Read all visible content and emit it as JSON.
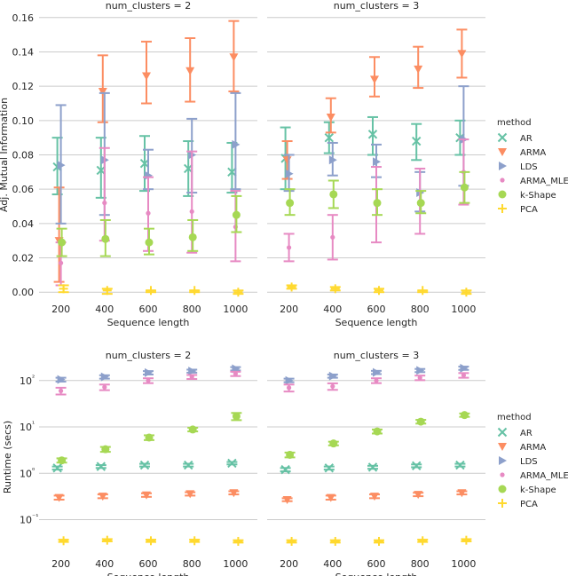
{
  "colors": {
    "AR": "#66c2a5",
    "ARMA": "#fc8d62",
    "LDS": "#8da0cb",
    "ARMA_MLE": "#e78ac3",
    "k-Shape": "#a6d854",
    "PCA": "#ffd92f",
    "grid": "#cccccc"
  },
  "legend": {
    "title": "method",
    "items": [
      {
        "name": "AR",
        "marker": "x"
      },
      {
        "name": "ARMA",
        "marker": "tri_down"
      },
      {
        "name": "LDS",
        "marker": "tri_right"
      },
      {
        "name": "ARMA_MLE",
        "marker": "dot"
      },
      {
        "name": "k-Shape",
        "marker": "circle"
      },
      {
        "name": "PCA",
        "marker": "plus"
      }
    ]
  },
  "chart_data": [
    {
      "type": "scatter",
      "title": "num_clusters = 2",
      "xlabel": "Sequence length",
      "ylabel": "Adj. Mutual Information",
      "categories": [
        "200",
        "400",
        "600",
        "800",
        "1000"
      ],
      "yscale": "linear",
      "ylim": [
        -0.003,
        0.163
      ],
      "yticks": [
        0.0,
        0.02,
        0.04,
        0.06,
        0.08,
        0.1,
        0.12,
        0.14,
        0.16
      ],
      "ytick_labels": [
        "0.00",
        "0.02",
        "0.04",
        "0.06",
        "0.08",
        "0.10",
        "0.12",
        "0.14",
        "0.16"
      ],
      "series": [
        {
          "name": "AR",
          "values": [
            0.073,
            0.071,
            0.075,
            0.072,
            0.07
          ],
          "lower": [
            0.057,
            0.055,
            0.059,
            0.056,
            0.058
          ],
          "upper": [
            0.09,
            0.09,
            0.091,
            0.088,
            0.087
          ]
        },
        {
          "name": "ARMA",
          "values": [
            0.03,
            0.117,
            0.126,
            0.129,
            0.137
          ],
          "lower": [
            0.006,
            0.099,
            0.11,
            0.111,
            0.117
          ],
          "upper": [
            0.061,
            0.138,
            0.146,
            0.148,
            0.158
          ]
        },
        {
          "name": "LDS",
          "values": [
            0.074,
            0.077,
            0.068,
            0.08,
            0.086
          ],
          "lower": [
            0.04,
            0.045,
            0.06,
            0.058,
            0.06
          ],
          "upper": [
            0.109,
            0.116,
            0.083,
            0.101,
            0.116
          ]
        },
        {
          "name": "ARMA_MLE",
          "values": [
            0.017,
            0.052,
            0.046,
            0.047,
            0.038
          ],
          "lower": [
            0.004,
            0.03,
            0.024,
            0.023,
            0.018
          ],
          "upper": [
            0.029,
            0.084,
            0.067,
            0.082,
            0.059
          ]
        },
        {
          "name": "k-Shape",
          "values": [
            0.029,
            0.031,
            0.029,
            0.032,
            0.045
          ],
          "lower": [
            0.021,
            0.021,
            0.022,
            0.024,
            0.035
          ],
          "upper": [
            0.037,
            0.042,
            0.037,
            0.042,
            0.056
          ]
        },
        {
          "name": "PCA",
          "values": [
            0.002,
            0.001,
            0.001,
            0.001,
            0.0
          ],
          "lower": [
            0.0,
            -0.001,
            0.0,
            0.0,
            -0.001
          ],
          "upper": [
            0.004,
            0.002,
            0.001,
            0.001,
            0.001
          ]
        }
      ]
    },
    {
      "type": "scatter",
      "title": "num_clusters = 3",
      "xlabel": "Sequence length",
      "ylabel": "",
      "categories": [
        "200",
        "400",
        "600",
        "800",
        "1000"
      ],
      "yscale": "linear",
      "ylim": [
        -0.003,
        0.163
      ],
      "yticks": [
        0.0,
        0.02,
        0.04,
        0.06,
        0.08,
        0.1,
        0.12,
        0.14,
        0.16
      ],
      "ytick_labels": [],
      "series": [
        {
          "name": "AR",
          "values": [
            0.078,
            0.09,
            0.092,
            0.088,
            0.09
          ],
          "lower": [
            0.06,
            0.081,
            0.08,
            0.077,
            0.08
          ],
          "upper": [
            0.096,
            0.099,
            0.102,
            0.098,
            0.1
          ]
        },
        {
          "name": "ARMA",
          "values": [
            0.077,
            0.102,
            0.124,
            0.13,
            0.139
          ],
          "lower": [
            0.066,
            0.093,
            0.114,
            0.119,
            0.125
          ],
          "upper": [
            0.088,
            0.113,
            0.137,
            0.143,
            0.153
          ]
        },
        {
          "name": "LDS",
          "values": [
            0.069,
            0.077,
            0.076,
            0.058,
            0.089
          ],
          "lower": [
            0.059,
            0.068,
            0.067,
            0.047,
            0.062
          ],
          "upper": [
            0.08,
            0.087,
            0.086,
            0.07,
            0.12
          ]
        },
        {
          "name": "ARMA_MLE",
          "values": [
            0.026,
            0.032,
            0.051,
            0.052,
            0.07
          ],
          "lower": [
            0.018,
            0.019,
            0.029,
            0.034,
            0.051
          ],
          "upper": [
            0.034,
            0.045,
            0.073,
            0.072,
            0.089
          ]
        },
        {
          "name": "k-Shape",
          "values": [
            0.052,
            0.057,
            0.052,
            0.052,
            0.061
          ],
          "lower": [
            0.045,
            0.049,
            0.045,
            0.046,
            0.052
          ],
          "upper": [
            0.06,
            0.065,
            0.06,
            0.059,
            0.07
          ]
        },
        {
          "name": "PCA",
          "values": [
            0.003,
            0.002,
            0.001,
            0.001,
            0.0
          ],
          "lower": [
            0.002,
            0.001,
            0.0,
            0.0,
            -0.001
          ],
          "upper": [
            0.004,
            0.003,
            0.002,
            0.001,
            0.001
          ]
        }
      ]
    },
    {
      "type": "scatter",
      "title": "num_clusters = 2",
      "xlabel": "Sequence length",
      "ylabel": "Runtime (secs)",
      "categories": [
        "200",
        "400",
        "600",
        "800",
        "1000"
      ],
      "yscale": "log",
      "ylim": [
        0.02,
        250
      ],
      "yticks": [
        0.1,
        1,
        10,
        100
      ],
      "ytick_labels": [
        "10⁻¹",
        "10⁰",
        "10¹",
        "10²"
      ],
      "series": [
        {
          "name": "AR",
          "values": [
            1.3,
            1.4,
            1.5,
            1.5,
            1.65
          ],
          "lower": [
            1.2,
            1.3,
            1.4,
            1.4,
            1.55
          ],
          "upper": [
            1.4,
            1.5,
            1.6,
            1.6,
            1.75
          ]
        },
        {
          "name": "ARMA",
          "values": [
            0.3,
            0.32,
            0.34,
            0.36,
            0.38
          ],
          "lower": [
            0.27,
            0.29,
            0.31,
            0.33,
            0.35
          ],
          "upper": [
            0.33,
            0.35,
            0.37,
            0.39,
            0.41
          ]
        },
        {
          "name": "LDS",
          "values": [
            105,
            120,
            148,
            160,
            180
          ],
          "lower": [
            95,
            110,
            135,
            148,
            165
          ],
          "upper": [
            115,
            130,
            160,
            172,
            195
          ]
        },
        {
          "name": "ARMA_MLE",
          "values": [
            60,
            72,
            100,
            120,
            140
          ],
          "lower": [
            50,
            62,
            88,
            108,
            125
          ],
          "upper": [
            70,
            82,
            112,
            132,
            155
          ]
        },
        {
          "name": "k-Shape",
          "values": [
            1.9,
            3.3,
            5.9,
            8.8,
            17
          ],
          "lower": [
            1.7,
            2.9,
            5.2,
            8.0,
            14
          ],
          "upper": [
            2.1,
            3.7,
            6.6,
            9.6,
            20
          ]
        },
        {
          "name": "PCA",
          "values": [
            0.035,
            0.036,
            0.035,
            0.035,
            0.034
          ],
          "lower": [
            0.033,
            0.034,
            0.033,
            0.033,
            0.032
          ],
          "upper": [
            0.037,
            0.038,
            0.037,
            0.037,
            0.036
          ]
        }
      ]
    },
    {
      "type": "scatter",
      "title": "num_clusters = 3",
      "xlabel": "Sequence length",
      "ylabel": "",
      "categories": [
        "200",
        "400",
        "600",
        "800",
        "1000"
      ],
      "yscale": "log",
      "ylim": [
        0.02,
        250
      ],
      "yticks": [
        0.1,
        1,
        10,
        100
      ],
      "ytick_labels": [],
      "series": [
        {
          "name": "AR",
          "values": [
            1.2,
            1.3,
            1.35,
            1.45,
            1.5
          ],
          "lower": [
            1.1,
            1.2,
            1.25,
            1.35,
            1.4
          ],
          "upper": [
            1.3,
            1.4,
            1.45,
            1.55,
            1.6
          ]
        },
        {
          "name": "ARMA",
          "values": [
            0.27,
            0.3,
            0.32,
            0.35,
            0.38
          ],
          "lower": [
            0.25,
            0.27,
            0.29,
            0.32,
            0.35
          ],
          "upper": [
            0.29,
            0.33,
            0.35,
            0.38,
            0.41
          ]
        },
        {
          "name": "LDS",
          "values": [
            100,
            125,
            150,
            165,
            185
          ],
          "lower": [
            92,
            115,
            138,
            152,
            170
          ],
          "upper": [
            110,
            135,
            162,
            178,
            200
          ]
        },
        {
          "name": "ARMA_MLE",
          "values": [
            70,
            75,
            100,
            115,
            130
          ],
          "lower": [
            58,
            63,
            88,
            102,
            115
          ],
          "upper": [
            82,
            87,
            112,
            128,
            145
          ]
        },
        {
          "name": "k-Shape",
          "values": [
            2.5,
            4.4,
            8.0,
            13,
            18
          ],
          "lower": [
            2.2,
            4.0,
            7.2,
            11.8,
            16.5
          ],
          "upper": [
            2.8,
            4.8,
            8.8,
            14.2,
            19.5
          ]
        },
        {
          "name": "PCA",
          "values": [
            0.034,
            0.034,
            0.034,
            0.035,
            0.036
          ],
          "lower": [
            0.032,
            0.032,
            0.032,
            0.033,
            0.034
          ],
          "upper": [
            0.036,
            0.036,
            0.036,
            0.037,
            0.038
          ]
        }
      ]
    }
  ]
}
